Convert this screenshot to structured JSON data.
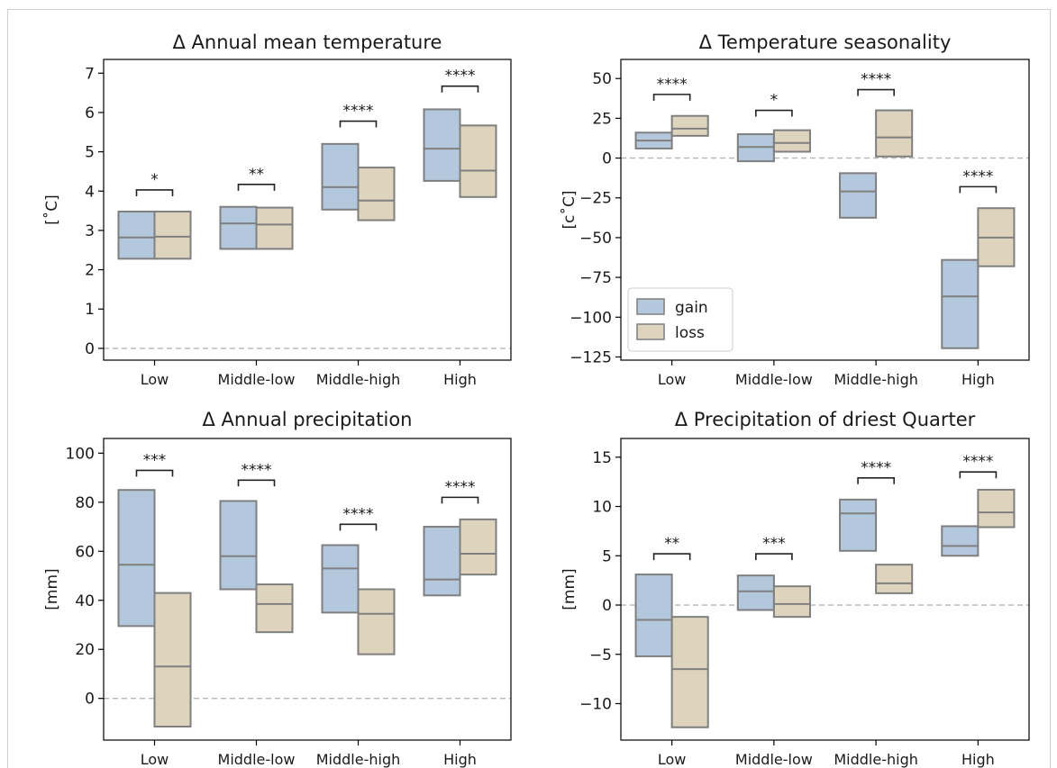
{
  "colors": {
    "gain": "#b4c8dd",
    "loss": "#ded4bd",
    "box_edge": "#7f7f7f",
    "zero_line": "#b5b5b5",
    "bracket": "#222222"
  },
  "chart_data": [
    {
      "type": "box",
      "title": "Δ Annual mean temperature",
      "ylabel": "[$^\\circ$C]",
      "ylabel_display": "[˚C]",
      "ylim": [
        -0.3,
        7.35
      ],
      "yticks": [
        0,
        1,
        2,
        3,
        4,
        5,
        6,
        7
      ],
      "ytick_labels": [
        "0",
        "1",
        "2",
        "3",
        "4",
        "5",
        "6",
        "7"
      ],
      "zero_line": true,
      "categories": [
        "Low",
        "Middle-low",
        "Middle-high",
        "High"
      ],
      "series": [
        {
          "name": "gain",
          "color": "#b4c8dd",
          "q1": [
            2.28,
            2.53,
            3.53,
            4.26
          ],
          "median": [
            2.82,
            3.18,
            4.1,
            5.08
          ],
          "q3": [
            3.48,
            3.6,
            5.2,
            6.08
          ]
        },
        {
          "name": "loss",
          "color": "#ded4bd",
          "q1": [
            2.28,
            2.53,
            3.26,
            3.85
          ],
          "median": [
            2.84,
            3.15,
            3.76,
            4.52
          ],
          "q3": [
            3.48,
            3.58,
            4.6,
            5.67
          ]
        }
      ],
      "significance": [
        {
          "category": 0,
          "label": "*",
          "y": 4.03
        },
        {
          "category": 1,
          "label": "**",
          "y": 4.17
        },
        {
          "category": 2,
          "label": "****",
          "y": 5.78
        },
        {
          "category": 3,
          "label": "****",
          "y": 6.67
        }
      ],
      "legend": null
    },
    {
      "type": "box",
      "title": "Δ Temperature seasonality",
      "ylabel": "[c$^\\circ$C]",
      "ylabel_display": "[c˚C]",
      "ylim": [
        -127,
        62
      ],
      "yticks": [
        -125,
        -100,
        -75,
        -50,
        -25,
        0,
        25,
        50
      ],
      "ytick_labels": [
        "−125",
        "−100",
        "−75",
        "−50",
        "−25",
        "0",
        "25",
        "50"
      ],
      "zero_line": true,
      "categories": [
        "Low",
        "Middle-low",
        "Middle-high",
        "High"
      ],
      "series": [
        {
          "name": "gain",
          "color": "#b4c8dd",
          "q1": [
            6,
            -2,
            -37.5,
            -119.5
          ],
          "median": [
            11,
            7,
            -21,
            -87
          ],
          "q3": [
            16,
            15,
            -9.5,
            -64
          ]
        },
        {
          "name": "loss",
          "color": "#ded4bd",
          "q1": [
            14,
            4,
            1,
            -68
          ],
          "median": [
            18.5,
            9.5,
            13,
            -50
          ],
          "q3": [
            26.5,
            17.5,
            30,
            -31.5
          ]
        }
      ],
      "significance": [
        {
          "category": 0,
          "label": "****",
          "y": 40
        },
        {
          "category": 1,
          "label": "*",
          "y": 30
        },
        {
          "category": 2,
          "label": "****",
          "y": 43
        },
        {
          "category": 3,
          "label": "****",
          "y": -18
        }
      ],
      "legend": {
        "position": "lower-left",
        "entries": [
          "gain",
          "loss"
        ]
      }
    },
    {
      "type": "box",
      "title": "Δ Annual precipitation",
      "ylabel": "[mm]",
      "ylabel_display": "[mm]",
      "ylim": [
        -17,
        106
      ],
      "yticks": [
        0,
        20,
        40,
        60,
        80,
        100
      ],
      "ytick_labels": [
        "0",
        "20",
        "40",
        "60",
        "80",
        "100"
      ],
      "zero_line": true,
      "categories": [
        "Low",
        "Middle-low",
        "Middle-high",
        "High"
      ],
      "series": [
        {
          "name": "gain",
          "color": "#b4c8dd",
          "q1": [
            29.5,
            44.5,
            35,
            42
          ],
          "median": [
            54.5,
            58,
            53,
            48.5
          ],
          "q3": [
            85,
            80.5,
            62.5,
            70
          ]
        },
        {
          "name": "loss",
          "color": "#ded4bd",
          "q1": [
            -11.5,
            27,
            18,
            50.5
          ],
          "median": [
            13,
            38.5,
            34.5,
            59
          ],
          "q3": [
            43,
            46.5,
            44.5,
            73
          ]
        }
      ],
      "significance": [
        {
          "category": 0,
          "label": "***",
          "y": 93
        },
        {
          "category": 1,
          "label": "****",
          "y": 89
        },
        {
          "category": 2,
          "label": "****",
          "y": 71
        },
        {
          "category": 3,
          "label": "****",
          "y": 82
        }
      ],
      "legend": null
    },
    {
      "type": "box",
      "title": "Δ Precipitation of driest Quarter",
      "ylabel": "[mm]",
      "ylabel_display": "[mm]",
      "ylim": [
        -13.7,
        16.9
      ],
      "yticks": [
        -10,
        -5,
        0,
        5,
        10,
        15
      ],
      "ytick_labels": [
        "−10",
        "−5",
        "0",
        "5",
        "10",
        "15"
      ],
      "zero_line": true,
      "categories": [
        "Low",
        "Middle-low",
        "Middle-high",
        "High"
      ],
      "series": [
        {
          "name": "gain",
          "color": "#b4c8dd",
          "q1": [
            -5.2,
            -0.5,
            5.5,
            5
          ],
          "median": [
            -1.5,
            1.4,
            9.3,
            6
          ],
          "q3": [
            3.1,
            3,
            10.7,
            8
          ]
        },
        {
          "name": "loss",
          "color": "#ded4bd",
          "q1": [
            -12.4,
            -1.2,
            1.2,
            7.9
          ],
          "median": [
            -6.5,
            0.1,
            2.2,
            9.4
          ],
          "q3": [
            -1.2,
            1.9,
            4.1,
            11.7
          ]
        }
      ],
      "significance": [
        {
          "category": 0,
          "label": "**",
          "y": 5.2
        },
        {
          "category": 1,
          "label": "***",
          "y": 5.2
        },
        {
          "category": 2,
          "label": "****",
          "y": 12.9
        },
        {
          "category": 3,
          "label": "****",
          "y": 13.5
        }
      ],
      "legend": null
    }
  ]
}
